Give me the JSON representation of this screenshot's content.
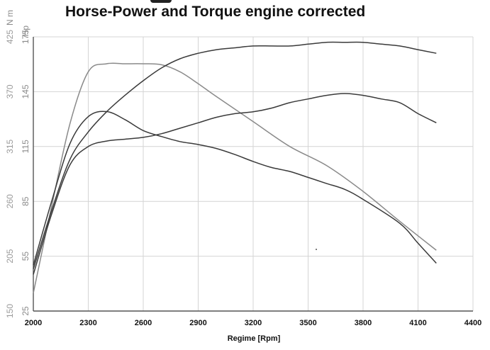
{
  "chart_data": {
    "type": "line",
    "title": "Horse-Power and Torque engine corrected",
    "xlabel": "Regime [Rpm]",
    "ylabel_left": "Hp",
    "ylabel_right": "N m",
    "xlim": [
      2000,
      4400
    ],
    "ylim_hp": [
      25,
      175
    ],
    "ylim_nm": [
      150,
      425
    ],
    "x_ticks": [
      2000,
      2300,
      2600,
      2900,
      3200,
      3500,
      3800,
      4100,
      4400
    ],
    "hp_ticks": [
      25,
      55,
      85,
      115,
      145,
      175
    ],
    "nm_ticks": [
      150,
      205,
      260,
      315,
      370,
      425
    ],
    "grid": true,
    "legend": "none",
    "series": [
      {
        "color": "#8a8a8a",
        "axis": "nm",
        "x": [
          2000,
          2100,
          2200,
          2300,
          2400,
          2500,
          2600,
          2700,
          2800,
          2900,
          3000,
          3200,
          3400,
          3600,
          3800,
          4000,
          4200
        ],
        "y": [
          168,
          255,
          338,
          390,
          398,
          398,
          398,
          397,
          390,
          378,
          365,
          340,
          315,
          296,
          270,
          240,
          211
        ]
      },
      {
        "color": "#3a3a3a",
        "axis": "nm",
        "x": [
          2000,
          2100,
          2200,
          2300,
          2400,
          2500,
          2600,
          2700,
          2800,
          2900,
          3000,
          3100,
          3200,
          3300,
          3400,
          3500,
          3600,
          3700,
          3800,
          4000,
          4100,
          4200
        ],
        "y": [
          196,
          260,
          318,
          345,
          350,
          342,
          331,
          325,
          320,
          317,
          313,
          307,
          300,
          294,
          290,
          284,
          278,
          272,
          262,
          238,
          218,
          198
        ]
      },
      {
        "color": "#3a3a3a",
        "axis": "hp",
        "x": [
          2000,
          2100,
          2200,
          2300,
          2400,
          2500,
          2600,
          2700,
          2800,
          2900,
          3000,
          3100,
          3200,
          3300,
          3400,
          3500,
          3600,
          3700,
          3800,
          3900,
          4000,
          4100,
          4200
        ],
        "y": [
          48,
          80,
          108,
          123,
          134,
          143,
          151,
          158,
          163,
          166,
          168,
          169,
          170,
          170,
          170,
          171,
          172,
          172,
          172,
          171,
          170,
          168,
          166
        ]
      },
      {
        "color": "#3a3a3a",
        "axis": "hp",
        "x": [
          2000,
          2100,
          2200,
          2300,
          2400,
          2500,
          2600,
          2700,
          2800,
          2900,
          3000,
          3100,
          3200,
          3300,
          3400,
          3500,
          3600,
          3700,
          3800,
          3900,
          4000,
          4100,
          4200
        ],
        "y": [
          45,
          78,
          105,
          115,
          118,
          119,
          120,
          122,
          125,
          128,
          131,
          133,
          134,
          136,
          139,
          141,
          143,
          144,
          143,
          141,
          139,
          133,
          128
        ]
      }
    ]
  },
  "noise_dot_color": "#555555"
}
